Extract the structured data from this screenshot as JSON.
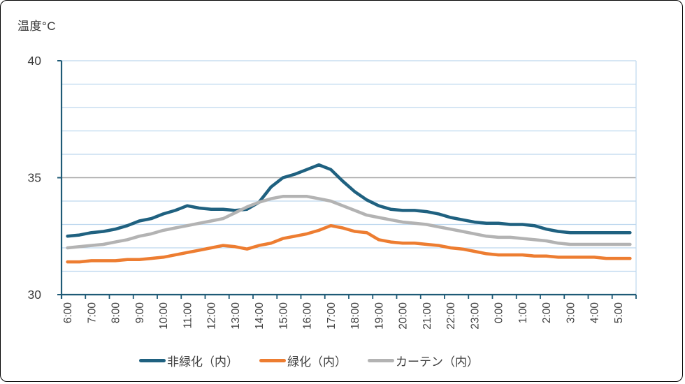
{
  "chart_data": {
    "type": "line",
    "title": "温度°C",
    "ylim": [
      30,
      40
    ],
    "y_ticks": [
      40,
      35,
      30
    ],
    "gridline_interval": 1,
    "grid": true,
    "legend_position": "bottom",
    "x_interval_minutes": 30,
    "x_tick_labels": [
      "6:00",
      "7:00",
      "8:00",
      "9:00",
      "10:00",
      "11:00",
      "12:00",
      "13:00",
      "14:00",
      "15:00",
      "16:00",
      "17:00",
      "18:00",
      "19:00",
      "20:00",
      "21:00",
      "22:00",
      "23:00",
      "0:00",
      "1:00",
      "2:00",
      "3:00",
      "4:00",
      "5:00"
    ],
    "x_times": [
      "6:00",
      "6:30",
      "7:00",
      "7:30",
      "8:00",
      "8:30",
      "9:00",
      "9:30",
      "10:00",
      "10:30",
      "11:00",
      "11:30",
      "12:00",
      "12:30",
      "13:00",
      "13:30",
      "14:00",
      "14:30",
      "15:00",
      "15:30",
      "16:00",
      "16:30",
      "17:00",
      "17:30",
      "18:00",
      "18:30",
      "19:00",
      "19:30",
      "20:00",
      "20:30",
      "21:00",
      "21:30",
      "22:00",
      "22:30",
      "23:00",
      "23:30",
      "0:00",
      "0:30",
      "1:00",
      "1:30",
      "2:00",
      "2:30",
      "3:00",
      "3:30",
      "4:00",
      "4:30",
      "5:00",
      "5:30"
    ],
    "series": [
      {
        "name": "非緑化（内）",
        "color": "#1F6180",
        "values": [
          32.5,
          32.55,
          32.65,
          32.7,
          32.8,
          32.95,
          33.15,
          33.25,
          33.45,
          33.6,
          33.8,
          33.7,
          33.65,
          33.65,
          33.6,
          33.65,
          33.95,
          34.6,
          35.0,
          35.15,
          35.35,
          35.55,
          35.35,
          34.85,
          34.4,
          34.05,
          33.8,
          33.65,
          33.6,
          33.6,
          33.55,
          33.45,
          33.3,
          33.2,
          33.1,
          33.05,
          33.05,
          33.0,
          33.0,
          32.95,
          32.8,
          32.7,
          32.65,
          32.65,
          32.65,
          32.65,
          32.65,
          32.65
        ]
      },
      {
        "name": "緑化（内）",
        "color": "#ED7D31",
        "values": [
          31.4,
          31.4,
          31.45,
          31.45,
          31.45,
          31.5,
          31.5,
          31.55,
          31.6,
          31.7,
          31.8,
          31.9,
          32.0,
          32.1,
          32.05,
          31.95,
          32.1,
          32.2,
          32.4,
          32.5,
          32.6,
          32.75,
          32.95,
          32.85,
          32.7,
          32.65,
          32.35,
          32.25,
          32.2,
          32.2,
          32.15,
          32.1,
          32.0,
          31.95,
          31.85,
          31.75,
          31.7,
          31.7,
          31.7,
          31.65,
          31.65,
          31.6,
          31.6,
          31.6,
          31.6,
          31.55,
          31.55,
          31.55
        ]
      },
      {
        "name": "カーテン（内）",
        "color": "#B3B3B3",
        "values": [
          32.0,
          32.05,
          32.1,
          32.15,
          32.25,
          32.35,
          32.5,
          32.6,
          32.75,
          32.85,
          32.95,
          33.05,
          33.15,
          33.25,
          33.5,
          33.75,
          33.95,
          34.1,
          34.2,
          34.2,
          34.2,
          34.1,
          34.0,
          33.8,
          33.6,
          33.4,
          33.3,
          33.2,
          33.1,
          33.05,
          33.0,
          32.9,
          32.8,
          32.7,
          32.6,
          32.5,
          32.45,
          32.45,
          32.4,
          32.35,
          32.3,
          32.2,
          32.15,
          32.15,
          32.15,
          32.15,
          32.15,
          32.15
        ]
      }
    ],
    "colors": {
      "gridline": "#BDD7EE",
      "gridline_at_35": "#A6A6A6",
      "axis": "#1E5A76",
      "text": "#404040",
      "background": "#FFFFFF",
      "frame_border": "#000000"
    }
  }
}
